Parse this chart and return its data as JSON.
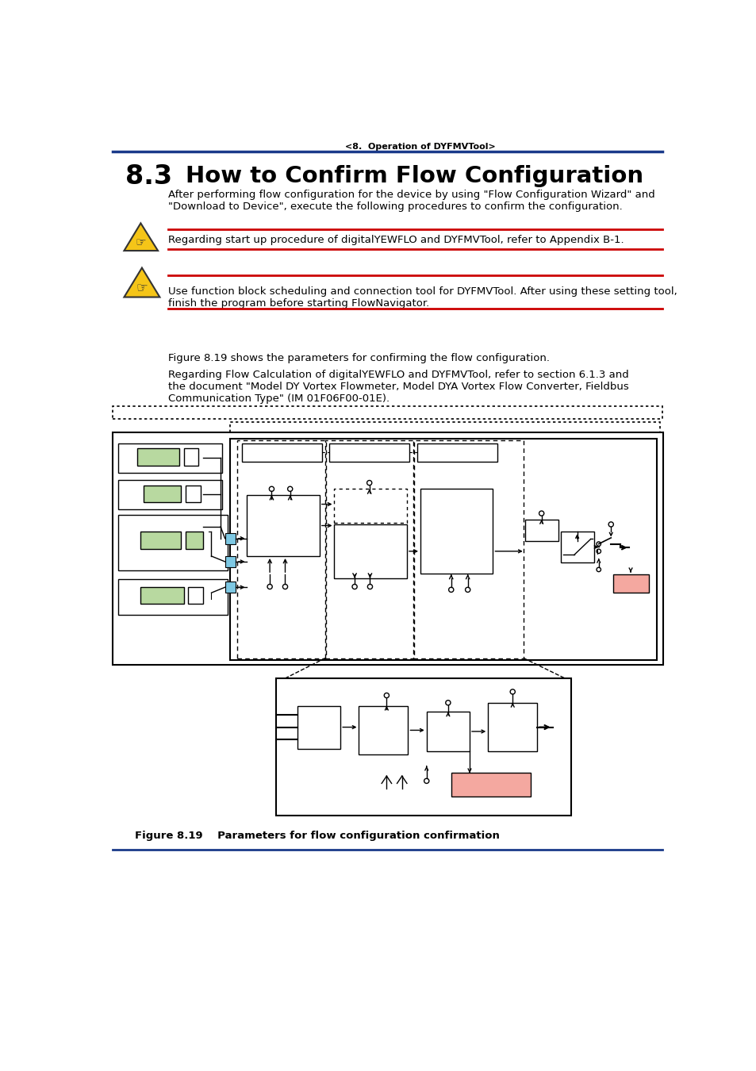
{
  "header_text": "<8.  Operation of DYFMVTool>",
  "title_number": "8.3",
  "title_text": "How to Confirm Flow Configuration",
  "body_text1": "After performing flow configuration for the device by using \"Flow Configuration Wizard\" and\n\"Download to Device\", execute the following procedures to confirm the configuration.",
  "warning1_text": "Regarding start up procedure of digitalYEWFLO and DYFMVTool, refer to Appendix B-1.",
  "warning2_text": "Use function block scheduling and connection tool for DYFMVTool. After using these setting tool,\nfinish the program before starting FlowNavigator.",
  "figure_text1": "Figure 8.19 shows the parameters for confirming the flow configuration.",
  "figure_text2": "Regarding Flow Calculation of digitalYEWFLO and DYFMVTool, refer to section 6.1.3 and\nthe document \"Model DY Vortex Flowmeter, Model DYA Vortex Flow Converter, Fieldbus\nCommunication Type\" (IM 01F06F00-01E).",
  "figure_caption": "Figure 8.19    Parameters for flow configuration confirmation",
  "header_line_color": "#1a3a8a",
  "red_line_color": "#cc0000",
  "warning_icon_color": "#f5c518",
  "green_box_color": "#b8d9a0",
  "blue_box_color": "#7ec8e3",
  "pink_box_color": "#f4a8a0",
  "background_color": "#ffffff",
  "bottom_line_color": "#1a3a8a"
}
